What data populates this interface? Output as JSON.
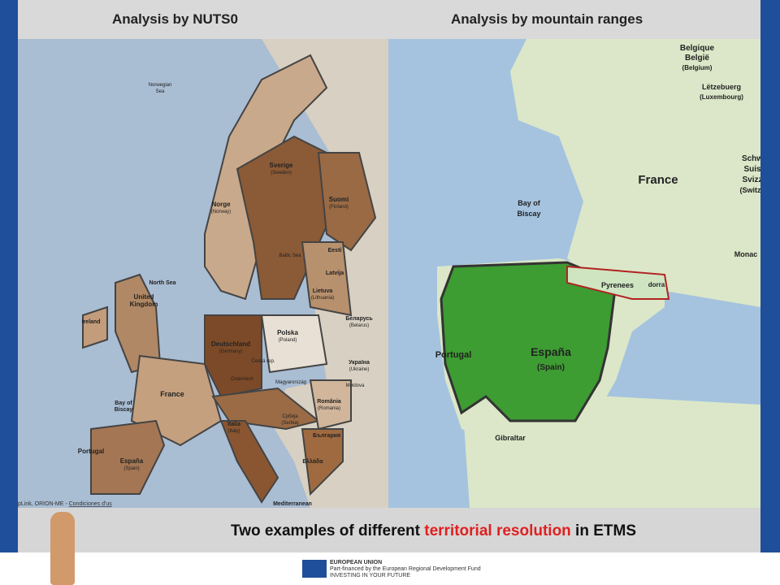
{
  "header": {
    "left_title": "Analysis by NUTS0",
    "right_title": "Analysis by mountain ranges"
  },
  "left_map": {
    "labels": [
      "Norwegian",
      "Sea",
      "Sverige",
      "(Sweden)",
      "Suomi",
      "(Finland)",
      "Norge",
      "(Norway)",
      "North Sea",
      "Baltic Sea",
      "Eesti",
      "Latvija",
      "Lietuva",
      "(Lithuania)",
      "United",
      "Kingdom",
      "Ireland",
      "Deutschland",
      "(Germany)",
      "Polska",
      "(Poland)",
      "Беларусь",
      "(Belarus)",
      "Україна",
      "(Ukraine)",
      "Moldova",
      "Česká rep.",
      "Österreich",
      "Magyarország",
      "România",
      "(Romania)",
      "France",
      "Bay of",
      "Biscay",
      "Italia",
      "(Italy)",
      "Србија",
      "(Serbia)",
      "България",
      "Ελλάδα",
      "Portugal",
      "España",
      "(Spain)",
      "Mediterranean"
    ],
    "attribution": "pLink, ORION-ME - ",
    "attribution_link": "Condiciones d'us"
  },
  "right_map": {
    "labels": [
      "Belgique",
      "België",
      "(Belgium)",
      "Lëtzebuerg",
      "(Luxembourg)",
      "France",
      "Schw",
      "Suis",
      "Svizz",
      "(Switze",
      "Bay of",
      "Biscay",
      "Monac",
      "Pyrenees",
      "dorra",
      "Portugal",
      "España",
      "(Spain)",
      "Gibraltar"
    ]
  },
  "caption": {
    "before": "Two examples of different ",
    "highlight": "territorial resolution",
    "after": " in ETMS"
  },
  "footer": {
    "line1": "EUROPEAN UNION",
    "line2": "Part-financed by the European Regional Development Fund",
    "line3": "INVESTING IN YOUR FUTURE"
  }
}
